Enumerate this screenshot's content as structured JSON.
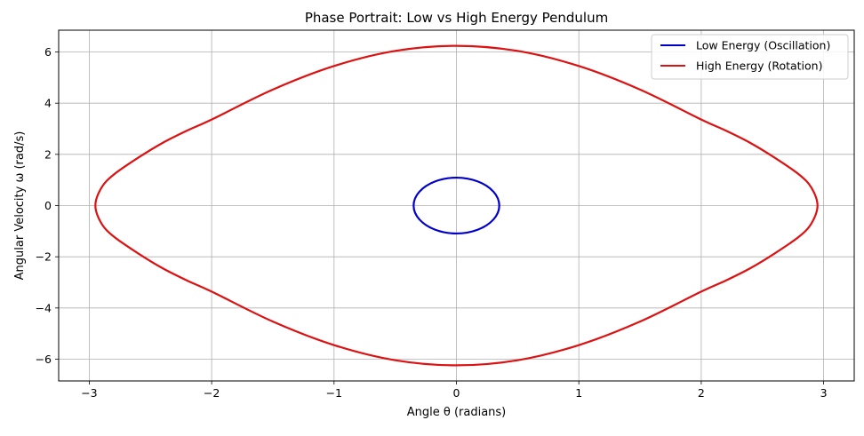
{
  "chart_data": {
    "type": "line",
    "title": "Phase Portrait: Low vs High Energy Pendulum",
    "xlabel": "Angle θ (radians)",
    "ylabel": "Angular Velocity ω (rad/s)",
    "xlim": [
      -3.25,
      3.25
    ],
    "ylim": [
      -6.85,
      6.85
    ],
    "xticks": [
      -3,
      -2,
      -1,
      0,
      1,
      2,
      3
    ],
    "xtick_labels": [
      "−3",
      "−2",
      "−1",
      "0",
      "1",
      "2",
      "3"
    ],
    "yticks": [
      -6,
      -4,
      -2,
      0,
      2,
      4,
      6
    ],
    "ytick_labels": [
      "−6",
      "−4",
      "−2",
      "0",
      "2",
      "4",
      "6"
    ],
    "grid": true,
    "legend_position": "top-right",
    "series": [
      {
        "name": "Low Energy (Oscillation)",
        "color": "#0000cc",
        "x": [
          0.35,
          0.303,
          0.175,
          0.0,
          -0.175,
          -0.303,
          -0.35,
          -0.303,
          -0.175,
          0.0,
          0.175,
          0.303,
          0.35
        ],
        "y": [
          0.0,
          0.54,
          0.94,
          1.09,
          0.94,
          0.54,
          0.0,
          -0.54,
          -0.94,
          -1.09,
          -0.94,
          -0.54,
          0.0
        ]
      },
      {
        "name": "High Energy (Rotation)",
        "color": "#dd1111",
        "x": [
          2.95,
          2.9,
          2.8,
          2.6,
          2.4,
          2.2,
          2.0,
          1.5,
          1.0,
          0.5,
          0.0,
          -0.5,
          -1.0,
          -1.5,
          -2.0,
          -2.2,
          -2.4,
          -2.6,
          -2.8,
          -2.9,
          -2.95,
          -2.9,
          -2.8,
          -2.6,
          -2.4,
          -2.2,
          -2.0,
          -1.5,
          -1.0,
          -0.5,
          0.0,
          0.5,
          1.0,
          1.5,
          2.0,
          2.2,
          2.4,
          2.6,
          2.8,
          2.9,
          2.95
        ],
        "y": [
          0.0,
          0.7,
          1.21,
          1.87,
          2.45,
          2.93,
          3.36,
          4.53,
          5.45,
          6.04,
          6.24,
          6.04,
          5.45,
          4.53,
          3.36,
          2.93,
          2.45,
          1.87,
          1.21,
          0.7,
          0.0,
          -0.7,
          -1.21,
          -1.87,
          -2.45,
          -2.93,
          -3.36,
          -4.53,
          -5.45,
          -6.04,
          -6.24,
          -6.04,
          -5.45,
          -4.53,
          -3.36,
          -2.93,
          -2.45,
          -1.87,
          -1.21,
          -0.7,
          0.0
        ]
      }
    ]
  }
}
